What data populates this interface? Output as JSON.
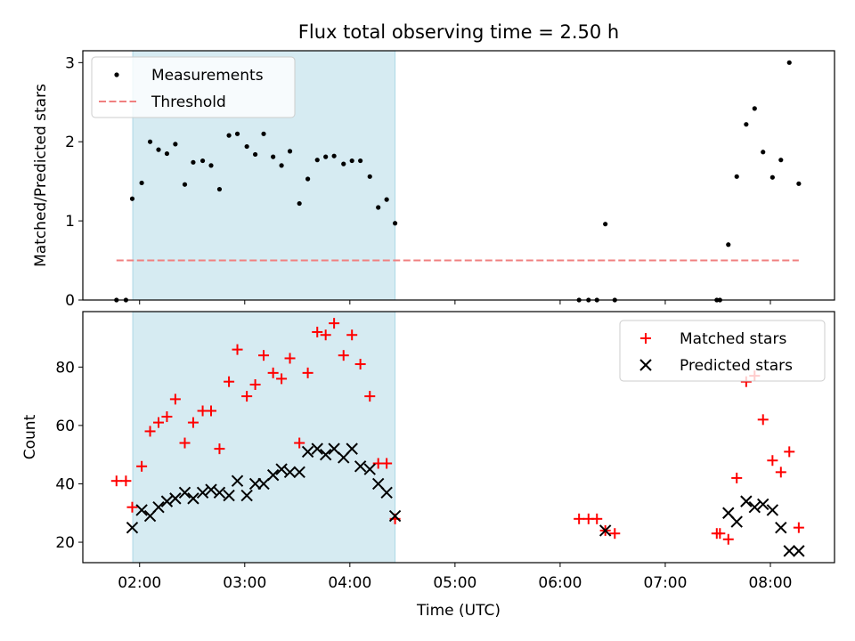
{
  "chart_data": {
    "type": "scatter",
    "title": "Flux total observing time = 2.50 h",
    "xlabel": "Time (UTC)",
    "x_ticks": [
      {
        "value": 2,
        "label": "02:00"
      },
      {
        "value": 3,
        "label": "03:00"
      },
      {
        "value": 4,
        "label": "04:00"
      },
      {
        "value": 5,
        "label": "05:00"
      },
      {
        "value": 6,
        "label": "06:00"
      },
      {
        "value": 7,
        "label": "07:00"
      },
      {
        "value": 8,
        "label": "08:00"
      }
    ],
    "xlim": [
      1.46,
      8.61
    ],
    "shaded_region": {
      "x_start": 1.935,
      "x_end": 4.43,
      "color": "#add8e6"
    },
    "panels": [
      {
        "name": "ratio",
        "ylabel": "Matched/Predicted stars",
        "ylim": [
          0,
          3.15
        ],
        "yticks": [
          0,
          1,
          2,
          3
        ],
        "legend": "top-left",
        "series": [
          {
            "name": "Measurements",
            "marker": "dot",
            "color": "#000000",
            "points": [
              [
                1.78,
                0
              ],
              [
                1.87,
                0
              ],
              [
                1.93,
                1.28
              ],
              [
                2.02,
                1.48
              ],
              [
                2.1,
                2.0
              ],
              [
                2.18,
                1.9
              ],
              [
                2.26,
                1.85
              ],
              [
                2.34,
                1.97
              ],
              [
                2.43,
                1.46
              ],
              [
                2.51,
                1.74
              ],
              [
                2.6,
                1.76
              ],
              [
                2.68,
                1.7
              ],
              [
                2.76,
                1.4
              ],
              [
                2.85,
                2.08
              ],
              [
                2.93,
                2.1
              ],
              [
                3.02,
                1.94
              ],
              [
                3.1,
                1.84
              ],
              [
                3.18,
                2.1
              ],
              [
                3.27,
                1.81
              ],
              [
                3.35,
                1.7
              ],
              [
                3.43,
                1.88
              ],
              [
                3.52,
                1.22
              ],
              [
                3.6,
                1.53
              ],
              [
                3.69,
                1.77
              ],
              [
                3.77,
                1.81
              ],
              [
                3.85,
                1.82
              ],
              [
                3.94,
                1.72
              ],
              [
                4.02,
                1.76
              ],
              [
                4.1,
                1.76
              ],
              [
                4.19,
                1.56
              ],
              [
                4.27,
                1.17
              ],
              [
                4.35,
                1.27
              ],
              [
                4.43,
                0.97
              ],
              [
                6.18,
                0
              ],
              [
                6.27,
                0
              ],
              [
                6.35,
                0
              ],
              [
                6.43,
                0.96
              ],
              [
                6.52,
                0
              ],
              [
                7.49,
                0
              ],
              [
                7.52,
                0
              ],
              [
                7.6,
                0.7
              ],
              [
                7.68,
                1.56
              ],
              [
                7.77,
                2.22
              ],
              [
                7.85,
                2.42
              ],
              [
                7.93,
                1.87
              ],
              [
                8.02,
                1.55
              ],
              [
                8.1,
                1.77
              ],
              [
                8.18,
                3.0
              ],
              [
                8.27,
                1.47
              ]
            ]
          },
          {
            "name": "Threshold",
            "style": "dashed",
            "color": "#f08080",
            "x_range": [
              1.78,
              8.27
            ],
            "value": 0.5
          }
        ]
      },
      {
        "name": "counts",
        "ylabel": "Count",
        "ylim": [
          13,
          99
        ],
        "yticks": [
          20,
          40,
          60,
          80
        ],
        "legend": "top-right",
        "series": [
          {
            "name": "Matched stars",
            "marker": "plus",
            "color": "#ff0000",
            "points": [
              [
                1.78,
                41
              ],
              [
                1.87,
                41
              ],
              [
                1.93,
                32
              ],
              [
                2.02,
                46
              ],
              [
                2.1,
                58
              ],
              [
                2.18,
                61
              ],
              [
                2.26,
                63
              ],
              [
                2.34,
                69
              ],
              [
                2.43,
                54
              ],
              [
                2.51,
                61
              ],
              [
                2.6,
                65
              ],
              [
                2.68,
                65
              ],
              [
                2.76,
                52
              ],
              [
                2.85,
                75
              ],
              [
                2.93,
                86
              ],
              [
                3.02,
                70
              ],
              [
                3.1,
                74
              ],
              [
                3.18,
                84
              ],
              [
                3.27,
                78
              ],
              [
                3.35,
                76
              ],
              [
                3.43,
                83
              ],
              [
                3.52,
                54
              ],
              [
                3.6,
                78
              ],
              [
                3.69,
                92
              ],
              [
                3.77,
                91
              ],
              [
                3.85,
                95
              ],
              [
                3.94,
                84
              ],
              [
                4.02,
                91
              ],
              [
                4.1,
                81
              ],
              [
                4.19,
                70
              ],
              [
                4.27,
                47
              ],
              [
                4.35,
                47
              ],
              [
                4.43,
                28
              ],
              [
                6.18,
                28
              ],
              [
                6.27,
                28
              ],
              [
                6.35,
                28
              ],
              [
                6.43,
                24
              ],
              [
                6.52,
                23
              ],
              [
                7.49,
                23
              ],
              [
                7.52,
                23
              ],
              [
                7.6,
                21
              ],
              [
                7.68,
                42
              ],
              [
                7.77,
                75
              ],
              [
                7.85,
                77
              ],
              [
                7.93,
                62
              ],
              [
                8.02,
                48
              ],
              [
                8.1,
                44
              ],
              [
                8.18,
                51
              ],
              [
                8.27,
                25
              ]
            ]
          },
          {
            "name": "Predicted stars",
            "marker": "x",
            "color": "#000000",
            "points": [
              [
                1.93,
                25
              ],
              [
                2.02,
                31
              ],
              [
                2.1,
                29
              ],
              [
                2.18,
                32
              ],
              [
                2.26,
                34
              ],
              [
                2.34,
                35
              ],
              [
                2.43,
                37
              ],
              [
                2.51,
                35
              ],
              [
                2.6,
                37
              ],
              [
                2.68,
                38
              ],
              [
                2.76,
                37
              ],
              [
                2.85,
                36
              ],
              [
                2.93,
                41
              ],
              [
                3.02,
                36
              ],
              [
                3.1,
                40
              ],
              [
                3.18,
                40
              ],
              [
                3.27,
                43
              ],
              [
                3.35,
                45
              ],
              [
                3.43,
                44
              ],
              [
                3.52,
                44
              ],
              [
                3.6,
                51
              ],
              [
                3.69,
                52
              ],
              [
                3.77,
                50
              ],
              [
                3.85,
                52
              ],
              [
                3.94,
                49
              ],
              [
                4.02,
                52
              ],
              [
                4.1,
                46
              ],
              [
                4.19,
                45
              ],
              [
                4.27,
                40
              ],
              [
                4.35,
                37
              ],
              [
                4.43,
                29
              ],
              [
                6.43,
                24
              ],
              [
                7.6,
                30
              ],
              [
                7.68,
                27
              ],
              [
                7.77,
                34
              ],
              [
                7.85,
                32
              ],
              [
                7.93,
                33
              ],
              [
                8.02,
                31
              ],
              [
                8.1,
                25
              ],
              [
                8.18,
                17
              ],
              [
                8.27,
                17
              ]
            ]
          }
        ]
      }
    ]
  }
}
